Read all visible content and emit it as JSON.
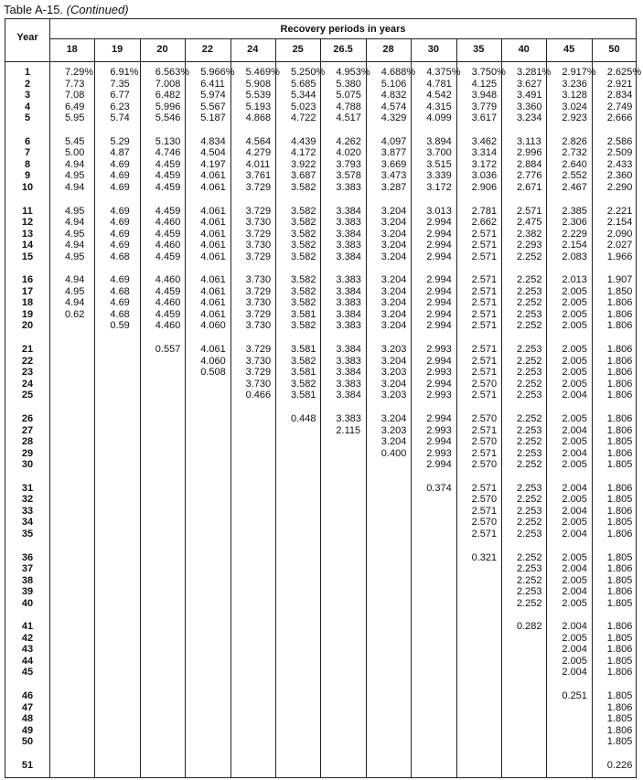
{
  "title": {
    "label": "Table A-15.",
    "suffix": "(Continued)"
  },
  "table": {
    "year_header": "Year",
    "group_header": "Recovery periods in years",
    "columns": [
      "18",
      "19",
      "20",
      "22",
      "24",
      "25",
      "26.5",
      "28",
      "30",
      "35",
      "40",
      "45",
      "50"
    ],
    "rows": [
      {
        "year": "1",
        "values": [
          "7.29%",
          "6.91%",
          "6.563%",
          "5.966%",
          "5.469%",
          "5.250%",
          "4.953%",
          "4.688%",
          "4.375%",
          "3.750%",
          "3.281%",
          "2.917%",
          "2.625%"
        ]
      },
      {
        "year": "2",
        "values": [
          "7.73",
          "7.35",
          "7.008",
          "6.411",
          "5.908",
          "5.685",
          "5.380",
          "5.106",
          "4.781",
          "4.125",
          "3.627",
          "3.236",
          "2.921"
        ]
      },
      {
        "year": "3",
        "values": [
          "7.08",
          "6.77",
          "6.482",
          "5.974",
          "5.539",
          "5.344",
          "5.075",
          "4.832",
          "4.542",
          "3.948",
          "3.491",
          "3.128",
          "2.834"
        ]
      },
      {
        "year": "4",
        "values": [
          "6.49",
          "6.23",
          "5.996",
          "5.567",
          "5.193",
          "5.023",
          "4.788",
          "4.574",
          "4.315",
          "3.779",
          "3.360",
          "3.024",
          "2.749"
        ]
      },
      {
        "year": "5",
        "values": [
          "5.95",
          "5.74",
          "5.546",
          "5.187",
          "4.868",
          "4.722",
          "4.517",
          "4.329",
          "4.099",
          "3.617",
          "3.234",
          "2.923",
          "2.666"
        ]
      },
      {
        "year": "6",
        "values": [
          "5.45",
          "5.29",
          "5.130",
          "4.834",
          "4.564",
          "4.439",
          "4.262",
          "4.097",
          "3.894",
          "3.462",
          "3.113",
          "2.826",
          "2.586"
        ]
      },
      {
        "year": "7",
        "values": [
          "5.00",
          "4.87",
          "4.746",
          "4.504",
          "4.279",
          "4.172",
          "4.020",
          "3.877",
          "3.700",
          "3.314",
          "2.996",
          "2.732",
          "2.509"
        ]
      },
      {
        "year": "8",
        "values": [
          "4.94",
          "4.69",
          "4.459",
          "4.197",
          "4.011",
          "3.922",
          "3.793",
          "3.669",
          "3.515",
          "3.172",
          "2.884",
          "2.640",
          "2.433"
        ]
      },
      {
        "year": "9",
        "values": [
          "4.95",
          "4.69",
          "4.459",
          "4.061",
          "3.761",
          "3.687",
          "3.578",
          "3.473",
          "3.339",
          "3.036",
          "2.776",
          "2.552",
          "2.360"
        ]
      },
      {
        "year": "10",
        "values": [
          "4.94",
          "4.69",
          "4.459",
          "4.061",
          "3.729",
          "3.582",
          "3.383",
          "3.287",
          "3.172",
          "2.906",
          "2.671",
          "2.467",
          "2.290"
        ]
      },
      {
        "year": "11",
        "values": [
          "4.95",
          "4.69",
          "4.459",
          "4.061",
          "3.729",
          "3.582",
          "3.384",
          "3.204",
          "3.013",
          "2.781",
          "2.571",
          "2.385",
          "2.221"
        ]
      },
      {
        "year": "12",
        "values": [
          "4.94",
          "4.69",
          "4.460",
          "4.061",
          "3.730",
          "3.582",
          "3.383",
          "3.204",
          "2.994",
          "2.662",
          "2.475",
          "2.306",
          "2.154"
        ]
      },
      {
        "year": "13",
        "values": [
          "4.95",
          "4.69",
          "4.459",
          "4.061",
          "3.729",
          "3.582",
          "3.384",
          "3.204",
          "2.994",
          "2.571",
          "2.382",
          "2.229",
          "2.090"
        ]
      },
      {
        "year": "14",
        "values": [
          "4.94",
          "4.69",
          "4.460",
          "4.061",
          "3.730",
          "3.582",
          "3.383",
          "3.204",
          "2.994",
          "2.571",
          "2.293",
          "2.154",
          "2.027"
        ]
      },
      {
        "year": "15",
        "values": [
          "4.95",
          "4.68",
          "4.459",
          "4.061",
          "3.729",
          "3.582",
          "3.384",
          "3.204",
          "2.994",
          "2.571",
          "2.252",
          "2.083",
          "1.966"
        ]
      },
      {
        "year": "16",
        "values": [
          "4.94",
          "4.69",
          "4.460",
          "4.061",
          "3.730",
          "3.582",
          "3.383",
          "3.204",
          "2.994",
          "2.571",
          "2.252",
          "2.013",
          "1.907"
        ]
      },
      {
        "year": "17",
        "values": [
          "4.95",
          "4.68",
          "4.459",
          "4.061",
          "3.729",
          "3.582",
          "3.384",
          "3.204",
          "2.994",
          "2.571",
          "2.253",
          "2.005",
          "1.850"
        ]
      },
      {
        "year": "18",
        "values": [
          "4.94",
          "4.69",
          "4.460",
          "4.061",
          "3.730",
          "3.582",
          "3.383",
          "3.204",
          "2.994",
          "2.571",
          "2.252",
          "2.005",
          "1.806"
        ]
      },
      {
        "year": "19",
        "values": [
          "0.62",
          "4.68",
          "4.459",
          "4.061",
          "3.729",
          "3.581",
          "3.384",
          "3.204",
          "2.994",
          "2.571",
          "2.253",
          "2.005",
          "1.806"
        ]
      },
      {
        "year": "20",
        "values": [
          "",
          "0.59",
          "4.460",
          "4.060",
          "3.730",
          "3.582",
          "3.383",
          "3.204",
          "2.994",
          "2.571",
          "2.252",
          "2.005",
          "1.806"
        ]
      },
      {
        "year": "21",
        "values": [
          "",
          "",
          "0.557",
          "4.061",
          "3.729",
          "3.581",
          "3.384",
          "3.203",
          "2.993",
          "2.571",
          "2.253",
          "2.005",
          "1.806"
        ]
      },
      {
        "year": "22",
        "values": [
          "",
          "",
          "",
          "4.060",
          "3.730",
          "3.582",
          "3.383",
          "3.204",
          "2.994",
          "2.571",
          "2.252",
          "2.005",
          "1.806"
        ]
      },
      {
        "year": "23",
        "values": [
          "",
          "",
          "",
          "0.508",
          "3.729",
          "3.581",
          "3.384",
          "3.203",
          "2.993",
          "2.571",
          "2.253",
          "2.005",
          "1.806"
        ]
      },
      {
        "year": "24",
        "values": [
          "",
          "",
          "",
          "",
          "3.730",
          "3.582",
          "3.383",
          "3.204",
          "2.994",
          "2.570",
          "2.252",
          "2.005",
          "1.806"
        ]
      },
      {
        "year": "25",
        "values": [
          "",
          "",
          "",
          "",
          "0.466",
          "3.581",
          "3.384",
          "3.203",
          "2.993",
          "2.571",
          "2.253",
          "2.004",
          "1.806"
        ]
      },
      {
        "year": "26",
        "values": [
          "",
          "",
          "",
          "",
          "",
          "0.448",
          "3.383",
          "3.204",
          "2.994",
          "2.570",
          "2.252",
          "2.005",
          "1.806"
        ]
      },
      {
        "year": "27",
        "values": [
          "",
          "",
          "",
          "",
          "",
          "",
          "2.115",
          "3.203",
          "2.993",
          "2.571",
          "2.253",
          "2.004",
          "1.806"
        ]
      },
      {
        "year": "28",
        "values": [
          "",
          "",
          "",
          "",
          "",
          "",
          "",
          "3.204",
          "2.994",
          "2.570",
          "2.252",
          "2.005",
          "1.805"
        ]
      },
      {
        "year": "29",
        "values": [
          "",
          "",
          "",
          "",
          "",
          "",
          "",
          "0.400",
          "2.993",
          "2.571",
          "2.253",
          "2.004",
          "1.806"
        ]
      },
      {
        "year": "30",
        "values": [
          "",
          "",
          "",
          "",
          "",
          "",
          "",
          "",
          "2.994",
          "2.570",
          "2.252",
          "2.005",
          "1.805"
        ]
      },
      {
        "year": "31",
        "values": [
          "",
          "",
          "",
          "",
          "",
          "",
          "",
          "",
          "0.374",
          "2.571",
          "2.253",
          "2.004",
          "1.806"
        ]
      },
      {
        "year": "32",
        "values": [
          "",
          "",
          "",
          "",
          "",
          "",
          "",
          "",
          "",
          "2.570",
          "2.252",
          "2.005",
          "1.805"
        ]
      },
      {
        "year": "33",
        "values": [
          "",
          "",
          "",
          "",
          "",
          "",
          "",
          "",
          "",
          "2.571",
          "2.253",
          "2.004",
          "1.806"
        ]
      },
      {
        "year": "34",
        "values": [
          "",
          "",
          "",
          "",
          "",
          "",
          "",
          "",
          "",
          "2.570",
          "2.252",
          "2.005",
          "1.805"
        ]
      },
      {
        "year": "35",
        "values": [
          "",
          "",
          "",
          "",
          "",
          "",
          "",
          "",
          "",
          "2.571",
          "2.253",
          "2.004",
          "1.806"
        ]
      },
      {
        "year": "36",
        "values": [
          "",
          "",
          "",
          "",
          "",
          "",
          "",
          "",
          "",
          "0.321",
          "2.252",
          "2.005",
          "1.805"
        ]
      },
      {
        "year": "37",
        "values": [
          "",
          "",
          "",
          "",
          "",
          "",
          "",
          "",
          "",
          "",
          "2.253",
          "2.004",
          "1.806"
        ]
      },
      {
        "year": "38",
        "values": [
          "",
          "",
          "",
          "",
          "",
          "",
          "",
          "",
          "",
          "",
          "2.252",
          "2.005",
          "1.805"
        ]
      },
      {
        "year": "39",
        "values": [
          "",
          "",
          "",
          "",
          "",
          "",
          "",
          "",
          "",
          "",
          "2.253",
          "2.004",
          "1.806"
        ]
      },
      {
        "year": "40",
        "values": [
          "",
          "",
          "",
          "",
          "",
          "",
          "",
          "",
          "",
          "",
          "2.252",
          "2.005",
          "1.805"
        ]
      },
      {
        "year": "41",
        "values": [
          "",
          "",
          "",
          "",
          "",
          "",
          "",
          "",
          "",
          "",
          "0.282",
          "2.004",
          "1.806"
        ]
      },
      {
        "year": "42",
        "values": [
          "",
          "",
          "",
          "",
          "",
          "",
          "",
          "",
          "",
          "",
          "",
          "2.005",
          "1.805"
        ]
      },
      {
        "year": "43",
        "values": [
          "",
          "",
          "",
          "",
          "",
          "",
          "",
          "",
          "",
          "",
          "",
          "2.004",
          "1.806"
        ]
      },
      {
        "year": "44",
        "values": [
          "",
          "",
          "",
          "",
          "",
          "",
          "",
          "",
          "",
          "",
          "",
          "2.005",
          "1.805"
        ]
      },
      {
        "year": "45",
        "values": [
          "",
          "",
          "",
          "",
          "",
          "",
          "",
          "",
          "",
          "",
          "",
          "2.004",
          "1.806"
        ]
      },
      {
        "year": "46",
        "values": [
          "",
          "",
          "",
          "",
          "",
          "",
          "",
          "",
          "",
          "",
          "",
          "0.251",
          "1.805"
        ]
      },
      {
        "year": "47",
        "values": [
          "",
          "",
          "",
          "",
          "",
          "",
          "",
          "",
          "",
          "",
          "",
          "",
          "1.806"
        ]
      },
      {
        "year": "48",
        "values": [
          "",
          "",
          "",
          "",
          "",
          "",
          "",
          "",
          "",
          "",
          "",
          "",
          "1.805"
        ]
      },
      {
        "year": "49",
        "values": [
          "",
          "",
          "",
          "",
          "",
          "",
          "",
          "",
          "",
          "",
          "",
          "",
          "1.806"
        ]
      },
      {
        "year": "50",
        "values": [
          "",
          "",
          "",
          "",
          "",
          "",
          "",
          "",
          "",
          "",
          "",
          "",
          "1.805"
        ]
      },
      {
        "year": "51",
        "values": [
          "",
          "",
          "",
          "",
          "",
          "",
          "",
          "",
          "",
          "",
          "",
          "",
          "0.226"
        ]
      }
    ]
  }
}
